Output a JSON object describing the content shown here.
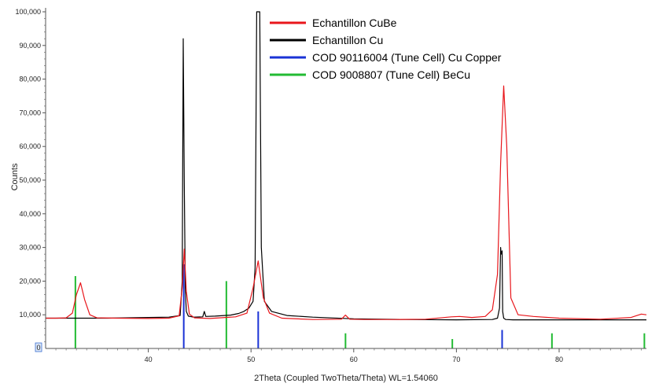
{
  "chart_data": {
    "type": "line",
    "xlabel": "2Theta (Coupled TwoTheta/Theta) WL=1.54060",
    "ylabel": "Counts",
    "xlim": [
      30,
      88.5
    ],
    "ylim": [
      0,
      100000
    ],
    "x_ticks": [
      40,
      50,
      60,
      70,
      80
    ],
    "y_ticks": [
      10000,
      20000,
      30000,
      40000,
      50000,
      60000,
      70000,
      80000,
      90000,
      100000
    ],
    "y_tick_labels": [
      "10,000",
      "20,000",
      "30,000",
      "40,000",
      "50,000",
      "60,000",
      "70,000",
      "80,000",
      "90,000",
      "100,000"
    ],
    "grid": false,
    "legend_position": "top-right",
    "axis_corner_label": "0",
    "series": [
      {
        "name": "Echantillon CuBe",
        "color": "#e8161b",
        "kind": "pattern",
        "x": [
          30,
          31,
          32,
          32.6,
          33.0,
          33.4,
          33.8,
          34.3,
          35,
          37,
          40,
          42,
          43.0,
          43.3,
          43.5,
          43.7,
          44.0,
          44.5,
          46,
          47.5,
          48.5,
          49.6,
          50.2,
          50.7,
          51.2,
          51.8,
          53,
          56,
          58.8,
          59.2,
          59.6,
          61,
          64,
          67,
          69.5,
          70.3,
          71.5,
          72.8,
          73.5,
          74.0,
          74.3,
          74.6,
          74.9,
          75.3,
          76,
          77.5,
          80,
          84,
          87,
          88,
          88.5
        ],
        "y": [
          9000,
          9000,
          9100,
          10500,
          16000,
          19500,
          14500,
          10000,
          9100,
          9000,
          8900,
          9000,
          9700,
          18000,
          29500,
          17000,
          10200,
          9100,
          8900,
          9200,
          9400,
          10500,
          18000,
          26000,
          15000,
          10500,
          9000,
          8600,
          8700,
          9900,
          8700,
          8600,
          8600,
          8700,
          9400,
          9500,
          9200,
          9500,
          11500,
          22000,
          55000,
          78000,
          60000,
          15000,
          10000,
          9500,
          9000,
          8700,
          9200,
          10200,
          10000
        ]
      },
      {
        "name": "Echantillon Cu",
        "color": "#000000",
        "kind": "pattern",
        "x": [
          30,
          33,
          36,
          40,
          42,
          43.1,
          43.3,
          43.4,
          43.5,
          43.6,
          43.7,
          43.9,
          44.4,
          45.3,
          45.45,
          45.6,
          46.5,
          48,
          48.8,
          49.3,
          49.8,
          50.2,
          50.4,
          50.55,
          50.85,
          51.0,
          51.3,
          52,
          53.5,
          56,
          60,
          65,
          70,
          73.5,
          74.0,
          74.2,
          74.3,
          74.35,
          74.45,
          74.5,
          74.6,
          74.8,
          75.5,
          78,
          82,
          86,
          88.5
        ],
        "y": [
          9000,
          9000,
          9000,
          9200,
          9300,
          9800,
          20000,
          92000,
          50000,
          18000,
          11000,
          9600,
          9300,
          9400,
          11000,
          9500,
          9600,
          9900,
          10400,
          11000,
          12000,
          14000,
          24000,
          100000,
          100000,
          30000,
          14000,
          11000,
          9800,
          9300,
          8800,
          8600,
          8500,
          8600,
          9000,
          12000,
          30000,
          28000,
          29000,
          11000,
          9000,
          8600,
          8500,
          8500,
          8500,
          8500,
          8500
        ]
      },
      {
        "name": "COD 90116004 (Tune Cell) Cu Copper",
        "color": "#1a33d6",
        "kind": "sticks",
        "x": [
          43.45,
          50.7,
          74.45
        ],
        "y": [
          25000,
          11000,
          5500
        ]
      },
      {
        "name": "COD 9008807 (Tune Cell) BeCu",
        "color": "#22bb33",
        "kind": "sticks",
        "x": [
          32.9,
          47.6,
          59.2,
          69.6,
          79.3,
          88.3
        ],
        "y": [
          21500,
          20000,
          4500,
          2800,
          4500,
          4500
        ]
      }
    ]
  }
}
